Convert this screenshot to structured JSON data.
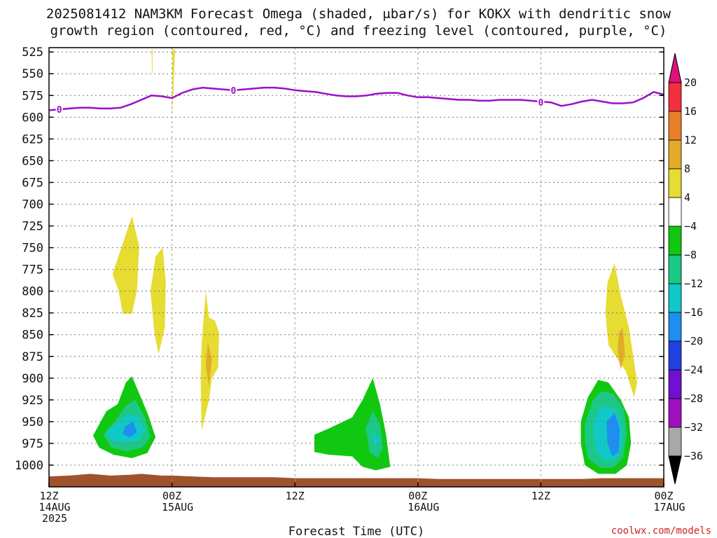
{
  "chart_data": {
    "type": "heatmap",
    "title_lines": [
      "2025081412 NAM3KM Forecast Omega (shaded, μbar/s) for KOKX with dendritic snow",
      "growth region (contoured, red, °C) and freezing level (contoured, purple, °C)"
    ],
    "xlabel": "Forecast Time (UTC)",
    "credit": "coolwx.com/models",
    "x_unit": "forecast hour",
    "xlim": [
      0,
      60
    ],
    "x_ticks": [
      {
        "hour": 0,
        "lines": [
          "12Z",
          "14AUG",
          "2025"
        ]
      },
      {
        "hour": 12,
        "lines": [
          "00Z",
          "15AUG"
        ]
      },
      {
        "hour": 24,
        "lines": [
          "12Z"
        ]
      },
      {
        "hour": 36,
        "lines": [
          "00Z",
          "16AUG"
        ]
      },
      {
        "hour": 48,
        "lines": [
          "12Z"
        ]
      },
      {
        "hour": 60,
        "lines": [
          "00Z",
          "17AUG"
        ]
      }
    ],
    "ylim": [
      1025,
      520
    ],
    "y_unit": "hPa",
    "y_ticks": [
      525,
      550,
      575,
      600,
      625,
      650,
      675,
      700,
      725,
      750,
      775,
      800,
      825,
      850,
      875,
      900,
      925,
      950,
      975,
      1000
    ],
    "grid": true,
    "colorbar": {
      "labels": [
        "20",
        "16",
        "12",
        "8",
        "4",
        "−4",
        "−8",
        "−12",
        "−16",
        "−20",
        "−24",
        "−28",
        "−32",
        "−36"
      ],
      "bins": [
        {
          "from": 16,
          "to": 20,
          "color": "#f0303c"
        },
        {
          "from": 12,
          "to": 16,
          "color": "#e8802a"
        },
        {
          "from": 8,
          "to": 12,
          "color": "#e2ac2a"
        },
        {
          "from": 4,
          "to": 8,
          "color": "#e6dc32"
        },
        {
          "from": -4,
          "to": 4,
          "color": "#ffffff"
        },
        {
          "from": -8,
          "to": -4,
          "color": "#10c810"
        },
        {
          "from": -12,
          "to": -8,
          "color": "#1cc886"
        },
        {
          "from": -16,
          "to": -12,
          "color": "#10c8c8"
        },
        {
          "from": -20,
          "to": -16,
          "color": "#1e8ef0"
        },
        {
          "from": -24,
          "to": -20,
          "color": "#2040e0"
        },
        {
          "from": -28,
          "to": -24,
          "color": "#7010d0"
        },
        {
          "from": -32,
          "to": -28,
          "color": "#a010c0"
        },
        {
          "from": -36,
          "to": -32,
          "color": "#a8a8a8"
        }
      ],
      "top_arrow_color": "#e0107a",
      "bottom_arrow_color": "#000000"
    },
    "omega_regions": [
      {
        "value": 6,
        "color": "#e6dc32",
        "points": [
          [
            6.2,
            780
          ],
          [
            7.2,
            745
          ],
          [
            8.1,
            714
          ],
          [
            8.8,
            748
          ],
          [
            8.6,
            798
          ],
          [
            8.1,
            826
          ],
          [
            7.2,
            826
          ],
          [
            6.8,
            800
          ]
        ]
      },
      {
        "value": 6,
        "color": "#e6dc32",
        "points": [
          [
            9.9,
            800
          ],
          [
            10.4,
            760
          ],
          [
            11.1,
            750
          ],
          [
            11.4,
            790
          ],
          [
            11.3,
            842
          ],
          [
            10.7,
            872
          ],
          [
            10.3,
            850
          ]
        ]
      },
      {
        "value": 6,
        "color": "#e6dc32",
        "points": [
          [
            14.8,
            900
          ],
          [
            14.9,
            860
          ],
          [
            15.3,
            800
          ],
          [
            15.6,
            830
          ],
          [
            16.2,
            834
          ],
          [
            16.6,
            848
          ],
          [
            16.5,
            888
          ],
          [
            15.9,
            900
          ],
          [
            15.6,
            926
          ],
          [
            14.9,
            960
          ]
        ]
      },
      {
        "value": 10,
        "color": "#e2ac2a",
        "points": [
          [
            15.5,
            858
          ],
          [
            15.9,
            878
          ],
          [
            15.6,
            910
          ],
          [
            15.3,
            885
          ]
        ]
      },
      {
        "value": 6,
        "color": "#e6dc32",
        "points": [
          [
            12.05,
            522
          ],
          [
            12.3,
            522
          ],
          [
            12.1,
            580
          ],
          [
            12.0,
            600
          ]
        ]
      },
      {
        "value": 6,
        "color": "#e6dc32",
        "points": [
          [
            10.0,
            522
          ],
          [
            10.1,
            522
          ],
          [
            10.1,
            550
          ],
          [
            10.05,
            548
          ]
        ]
      },
      {
        "value": 6,
        "color": "#e6dc32",
        "points": [
          [
            54.3,
            825
          ],
          [
            54.5,
            790
          ],
          [
            55.2,
            768
          ],
          [
            55.8,
            805
          ],
          [
            56.6,
            842
          ],
          [
            57.4,
            905
          ],
          [
            57.1,
            922
          ],
          [
            56.3,
            892
          ],
          [
            55.6,
            880
          ],
          [
            54.6,
            862
          ]
        ]
      },
      {
        "value": 10,
        "color": "#e2ac2a",
        "points": [
          [
            55.6,
            848
          ],
          [
            56.0,
            842
          ],
          [
            56.2,
            872
          ],
          [
            55.8,
            890
          ],
          [
            55.5,
            870
          ]
        ]
      },
      {
        "value": -6,
        "color": "#10c810",
        "points": [
          [
            4.3,
            966
          ],
          [
            5.6,
            938
          ],
          [
            6.7,
            930
          ],
          [
            7.5,
            905
          ],
          [
            8.1,
            898
          ],
          [
            9.6,
            940
          ],
          [
            10.4,
            968
          ],
          [
            9.6,
            986
          ],
          [
            8.1,
            992
          ],
          [
            6.3,
            988
          ],
          [
            4.9,
            980
          ]
        ]
      },
      {
        "value": -10,
        "color": "#1cc886",
        "points": [
          [
            5.3,
            965
          ],
          [
            6.4,
            950
          ],
          [
            7.4,
            933
          ],
          [
            8.4,
            925
          ],
          [
            9.4,
            946
          ],
          [
            9.9,
            968
          ],
          [
            9.1,
            980
          ],
          [
            7.6,
            984
          ],
          [
            6.1,
            980
          ]
        ]
      },
      {
        "value": -14,
        "color": "#10c8c8",
        "points": [
          [
            5.5,
            962
          ],
          [
            6.7,
            952
          ],
          [
            7.6,
            942
          ],
          [
            8.6,
            943
          ],
          [
            9.4,
            960
          ],
          [
            8.7,
            972
          ],
          [
            7.4,
            974
          ],
          [
            6.2,
            972
          ]
        ]
      },
      {
        "value": -18,
        "color": "#1e8ef0",
        "points": [
          [
            7.4,
            956
          ],
          [
            8.2,
            950
          ],
          [
            8.6,
            962
          ],
          [
            7.9,
            968
          ],
          [
            7.2,
            964
          ]
        ]
      },
      {
        "value": -6,
        "color": "#10c810",
        "points": [
          [
            25.9,
            965
          ],
          [
            27.3,
            958
          ],
          [
            29.6,
            945
          ],
          [
            30.6,
            925
          ],
          [
            31.6,
            900
          ],
          [
            32.3,
            930
          ],
          [
            32.9,
            965
          ],
          [
            33.3,
            1002
          ],
          [
            31.9,
            1006
          ],
          [
            30.6,
            1002
          ],
          [
            29.6,
            990
          ],
          [
            27.3,
            988
          ],
          [
            25.9,
            985
          ]
        ]
      },
      {
        "value": -10,
        "color": "#1cc886",
        "points": [
          [
            30.9,
            958
          ],
          [
            31.6,
            938
          ],
          [
            32.3,
            952
          ],
          [
            32.6,
            980
          ],
          [
            32.1,
            992
          ],
          [
            31.3,
            985
          ]
        ]
      },
      {
        "value": -14,
        "color": "#10c8c8",
        "points": [
          [
            31.7,
            962
          ],
          [
            32.2,
            970
          ],
          [
            31.9,
            980
          ],
          [
            31.6,
            972
          ]
        ]
      },
      {
        "value": -6,
        "color": "#10c810",
        "points": [
          [
            51.9,
            950
          ],
          [
            52.6,
            922
          ],
          [
            53.6,
            902
          ],
          [
            54.6,
            905
          ],
          [
            55.8,
            925
          ],
          [
            56.6,
            945
          ],
          [
            56.8,
            975
          ],
          [
            56.4,
            1000
          ],
          [
            55.3,
            1010
          ],
          [
            53.6,
            1010
          ],
          [
            52.3,
            1000
          ],
          [
            51.9,
            975
          ]
        ]
      },
      {
        "value": -10,
        "color": "#1cc886",
        "points": [
          [
            52.3,
            952
          ],
          [
            53.1,
            925
          ],
          [
            53.9,
            915
          ],
          [
            55.1,
            918
          ],
          [
            56.1,
            935
          ],
          [
            56.4,
            965
          ],
          [
            56.0,
            992
          ],
          [
            55.1,
            1003
          ],
          [
            53.8,
            1003
          ],
          [
            52.6,
            992
          ],
          [
            52.3,
            972
          ]
        ]
      },
      {
        "value": -14,
        "color": "#10c8c8",
        "points": [
          [
            53.1,
            952
          ],
          [
            53.9,
            932
          ],
          [
            55.1,
            935
          ],
          [
            55.9,
            950
          ],
          [
            56.0,
            975
          ],
          [
            55.4,
            993
          ],
          [
            54.3,
            995
          ],
          [
            53.3,
            982
          ]
        ]
      },
      {
        "value": -18,
        "color": "#1e8ef0",
        "points": [
          [
            54.4,
            950
          ],
          [
            55.2,
            940
          ],
          [
            55.7,
            958
          ],
          [
            55.6,
            985
          ],
          [
            55.0,
            990
          ],
          [
            54.5,
            975
          ]
        ]
      }
    ],
    "terrain": {
      "color": "#a0522d",
      "x": [
        0,
        2,
        4,
        6,
        8,
        9,
        10,
        11,
        12,
        14,
        16,
        18,
        20,
        22,
        24,
        26,
        28,
        30,
        32,
        34,
        36,
        38,
        40,
        42,
        44,
        46,
        48,
        50,
        52,
        54,
        56,
        58,
        60
      ],
      "y": [
        1013,
        1012,
        1010,
        1012,
        1011,
        1010,
        1011,
        1012,
        1012,
        1013,
        1014,
        1014,
        1014,
        1014,
        1015,
        1015,
        1015,
        1015,
        1015,
        1015,
        1015,
        1016,
        1016,
        1016,
        1016,
        1016,
        1016,
        1016,
        1016,
        1015,
        1015,
        1015,
        1015
      ]
    },
    "freezing_level": {
      "name": "0",
      "color": "#9a10c8",
      "x": [
        0,
        1,
        2,
        3,
        4,
        5,
        6,
        7,
        8,
        9,
        10,
        11,
        12,
        13,
        14,
        15,
        16,
        17,
        18,
        19,
        20,
        21,
        22,
        23,
        24,
        25,
        26,
        27,
        28,
        29,
        30,
        31,
        32,
        33,
        34,
        35,
        36,
        37,
        38,
        39,
        40,
        41,
        42,
        43,
        44,
        45,
        46,
        47,
        48,
        49,
        50,
        51,
        52,
        53,
        54,
        55,
        56,
        57,
        58,
        59,
        60
      ],
      "y": [
        592,
        591,
        590,
        589,
        589,
        590,
        590,
        589,
        585,
        580,
        575,
        576,
        578,
        572,
        568,
        566,
        567,
        568,
        569,
        568,
        567,
        566,
        566,
        567,
        569,
        570,
        571,
        573,
        575,
        576,
        576,
        575,
        573,
        572,
        572,
        575,
        577,
        577,
        578,
        579,
        580,
        580,
        581,
        581,
        580,
        580,
        580,
        581,
        582,
        583,
        587,
        585,
        582,
        580,
        582,
        584,
        584,
        583,
        578,
        571,
        574
      ],
      "labels": [
        {
          "x": 1.0,
          "y": 591
        },
        {
          "x": 18.0,
          "y": 569
        },
        {
          "x": 48.0,
          "y": 583
        }
      ]
    }
  }
}
